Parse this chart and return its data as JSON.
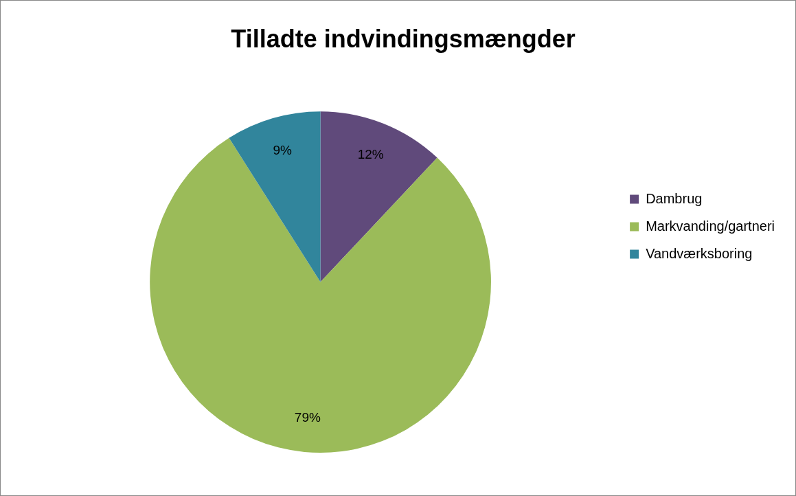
{
  "chart_data": {
    "type": "pie",
    "title": "Tilladte indvindingsmængder",
    "categories": [
      "Dambrug",
      "Markvanding/gartneri",
      "Vandværksboring"
    ],
    "values": [
      12,
      79,
      9
    ],
    "colors": [
      "#604a7b",
      "#9bbb59",
      "#31859c"
    ],
    "value_labels": [
      "12%",
      "79%",
      "9%"
    ],
    "legend": "right"
  }
}
